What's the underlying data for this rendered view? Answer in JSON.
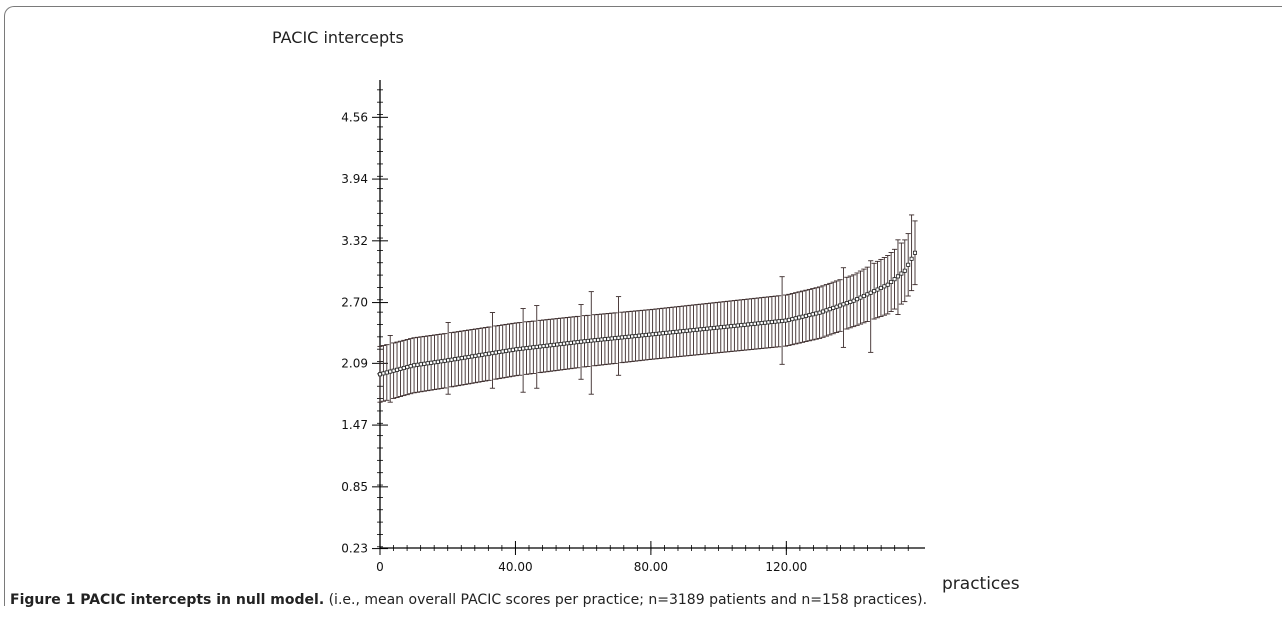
{
  "figure": {
    "label": "Figure 1 PACIC intercepts in null model.",
    "caption": " (i.e., mean overall PACIC scores per practice; n=3189 patients and n=158 practices)."
  },
  "chart_data": {
    "type": "scatter",
    "title": "",
    "ylabel": "PACIC intercepts",
    "xlabel": "practices",
    "xlim": [
      0,
      158
    ],
    "ylim": [
      0.0,
      5.0
    ],
    "x_ticks": [
      {
        "value": 0,
        "label": "0"
      },
      {
        "value": 40,
        "label": "40.00"
      },
      {
        "value": 80,
        "label": "80.00"
      },
      {
        "value": 120,
        "label": "120.00"
      }
    ],
    "y_ticks": [
      {
        "value": 0.23,
        "label": "0.23"
      },
      {
        "value": 0.85,
        "label": "0.85"
      },
      {
        "value": 1.47,
        "label": "1.47"
      },
      {
        "value": 2.09,
        "label": "2.09"
      },
      {
        "value": 2.7,
        "label": "2.70"
      },
      {
        "value": 3.32,
        "label": "3.32"
      },
      {
        "value": 3.94,
        "label": "3.94"
      },
      {
        "value": 4.56,
        "label": "4.56"
      }
    ],
    "n_practices": 158,
    "estimate_profile": [
      [
        0,
        1.98
      ],
      [
        10,
        2.07
      ],
      [
        20,
        2.12
      ],
      [
        40,
        2.23
      ],
      [
        60,
        2.31
      ],
      [
        80,
        2.38
      ],
      [
        100,
        2.45
      ],
      [
        120,
        2.52
      ],
      [
        130,
        2.6
      ],
      [
        140,
        2.72
      ],
      [
        150,
        2.88
      ],
      [
        155,
        3.02
      ],
      [
        158,
        3.2
      ]
    ],
    "interval_halfwidth_profile": [
      [
        0,
        0.28
      ],
      [
        80,
        0.25
      ],
      [
        140,
        0.26
      ],
      [
        158,
        0.32
      ]
    ],
    "interval_outliers": [
      {
        "x": 3,
        "upper": 2.37,
        "lower": 1.7
      },
      {
        "x": 20,
        "upper": 2.5,
        "lower": 1.78
      },
      {
        "x": 33,
        "upper": 2.6,
        "lower": 1.84
      },
      {
        "x": 42,
        "upper": 2.64,
        "lower": 1.8
      },
      {
        "x": 46,
        "upper": 2.67,
        "lower": 1.84
      },
      {
        "x": 59,
        "upper": 2.68,
        "lower": 1.93
      },
      {
        "x": 62,
        "upper": 2.81,
        "lower": 1.78
      },
      {
        "x": 70,
        "upper": 2.76,
        "lower": 1.97
      },
      {
        "x": 119,
        "upper": 2.96,
        "lower": 2.08
      },
      {
        "x": 137,
        "upper": 3.05,
        "lower": 2.25
      },
      {
        "x": 145,
        "upper": 3.12,
        "lower": 2.2
      },
      {
        "x": 153,
        "upper": 3.33,
        "lower": 2.58
      },
      {
        "x": 157,
        "upper": 3.58,
        "lower": 2.82
      }
    ]
  }
}
